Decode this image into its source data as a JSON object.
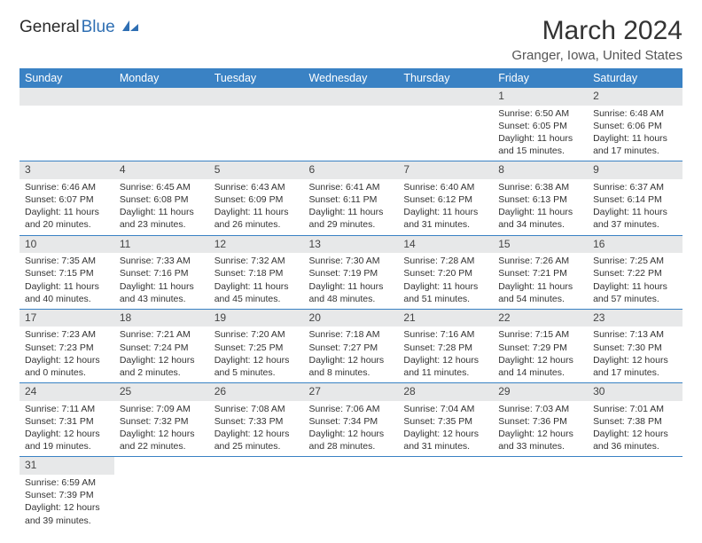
{
  "logo": {
    "text_general": "General",
    "text_blue": "Blue"
  },
  "header": {
    "title": "March 2024",
    "location": "Granger, Iowa, United States"
  },
  "colors": {
    "header_bg": "#3a82c4",
    "header_fg": "#ffffff",
    "daynum_bg": "#e7e8e9",
    "border": "#3a82c4",
    "text": "#333333"
  },
  "days_of_week": [
    "Sunday",
    "Monday",
    "Tuesday",
    "Wednesday",
    "Thursday",
    "Friday",
    "Saturday"
  ],
  "weeks": [
    [
      null,
      null,
      null,
      null,
      null,
      {
        "n": "1",
        "sunrise": "6:50 AM",
        "sunset": "6:05 PM",
        "daylight": "11 hours and 15 minutes."
      },
      {
        "n": "2",
        "sunrise": "6:48 AM",
        "sunset": "6:06 PM",
        "daylight": "11 hours and 17 minutes."
      }
    ],
    [
      {
        "n": "3",
        "sunrise": "6:46 AM",
        "sunset": "6:07 PM",
        "daylight": "11 hours and 20 minutes."
      },
      {
        "n": "4",
        "sunrise": "6:45 AM",
        "sunset": "6:08 PM",
        "daylight": "11 hours and 23 minutes."
      },
      {
        "n": "5",
        "sunrise": "6:43 AM",
        "sunset": "6:09 PM",
        "daylight": "11 hours and 26 minutes."
      },
      {
        "n": "6",
        "sunrise": "6:41 AM",
        "sunset": "6:11 PM",
        "daylight": "11 hours and 29 minutes."
      },
      {
        "n": "7",
        "sunrise": "6:40 AM",
        "sunset": "6:12 PM",
        "daylight": "11 hours and 31 minutes."
      },
      {
        "n": "8",
        "sunrise": "6:38 AM",
        "sunset": "6:13 PM",
        "daylight": "11 hours and 34 minutes."
      },
      {
        "n": "9",
        "sunrise": "6:37 AM",
        "sunset": "6:14 PM",
        "daylight": "11 hours and 37 minutes."
      }
    ],
    [
      {
        "n": "10",
        "sunrise": "7:35 AM",
        "sunset": "7:15 PM",
        "daylight": "11 hours and 40 minutes."
      },
      {
        "n": "11",
        "sunrise": "7:33 AM",
        "sunset": "7:16 PM",
        "daylight": "11 hours and 43 minutes."
      },
      {
        "n": "12",
        "sunrise": "7:32 AM",
        "sunset": "7:18 PM",
        "daylight": "11 hours and 45 minutes."
      },
      {
        "n": "13",
        "sunrise": "7:30 AM",
        "sunset": "7:19 PM",
        "daylight": "11 hours and 48 minutes."
      },
      {
        "n": "14",
        "sunrise": "7:28 AM",
        "sunset": "7:20 PM",
        "daylight": "11 hours and 51 minutes."
      },
      {
        "n": "15",
        "sunrise": "7:26 AM",
        "sunset": "7:21 PM",
        "daylight": "11 hours and 54 minutes."
      },
      {
        "n": "16",
        "sunrise": "7:25 AM",
        "sunset": "7:22 PM",
        "daylight": "11 hours and 57 minutes."
      }
    ],
    [
      {
        "n": "17",
        "sunrise": "7:23 AM",
        "sunset": "7:23 PM",
        "daylight": "12 hours and 0 minutes."
      },
      {
        "n": "18",
        "sunrise": "7:21 AM",
        "sunset": "7:24 PM",
        "daylight": "12 hours and 2 minutes."
      },
      {
        "n": "19",
        "sunrise": "7:20 AM",
        "sunset": "7:25 PM",
        "daylight": "12 hours and 5 minutes."
      },
      {
        "n": "20",
        "sunrise": "7:18 AM",
        "sunset": "7:27 PM",
        "daylight": "12 hours and 8 minutes."
      },
      {
        "n": "21",
        "sunrise": "7:16 AM",
        "sunset": "7:28 PM",
        "daylight": "12 hours and 11 minutes."
      },
      {
        "n": "22",
        "sunrise": "7:15 AM",
        "sunset": "7:29 PM",
        "daylight": "12 hours and 14 minutes."
      },
      {
        "n": "23",
        "sunrise": "7:13 AM",
        "sunset": "7:30 PM",
        "daylight": "12 hours and 17 minutes."
      }
    ],
    [
      {
        "n": "24",
        "sunrise": "7:11 AM",
        "sunset": "7:31 PM",
        "daylight": "12 hours and 19 minutes."
      },
      {
        "n": "25",
        "sunrise": "7:09 AM",
        "sunset": "7:32 PM",
        "daylight": "12 hours and 22 minutes."
      },
      {
        "n": "26",
        "sunrise": "7:08 AM",
        "sunset": "7:33 PM",
        "daylight": "12 hours and 25 minutes."
      },
      {
        "n": "27",
        "sunrise": "7:06 AM",
        "sunset": "7:34 PM",
        "daylight": "12 hours and 28 minutes."
      },
      {
        "n": "28",
        "sunrise": "7:04 AM",
        "sunset": "7:35 PM",
        "daylight": "12 hours and 31 minutes."
      },
      {
        "n": "29",
        "sunrise": "7:03 AM",
        "sunset": "7:36 PM",
        "daylight": "12 hours and 33 minutes."
      },
      {
        "n": "30",
        "sunrise": "7:01 AM",
        "sunset": "7:38 PM",
        "daylight": "12 hours and 36 minutes."
      }
    ],
    [
      {
        "n": "31",
        "sunrise": "6:59 AM",
        "sunset": "7:39 PM",
        "daylight": "12 hours and 39 minutes."
      },
      null,
      null,
      null,
      null,
      null,
      null
    ]
  ],
  "labels": {
    "sunrise": "Sunrise: ",
    "sunset": "Sunset: ",
    "daylight": "Daylight: "
  }
}
